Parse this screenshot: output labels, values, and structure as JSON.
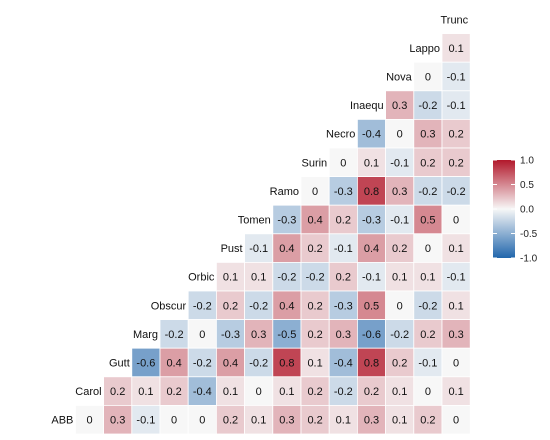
{
  "chart_data": {
    "type": "heatmap",
    "variables": [
      "Trunc",
      "Lappo",
      "Nova",
      "Inaequ",
      "Necro",
      "Surin",
      "Ramo",
      "Tomen",
      "Pust",
      "Orbic",
      "Obscur",
      "Marg",
      "Gutt",
      "Carol",
      "ABB"
    ],
    "rows": [
      {
        "label": "Trunc",
        "values": []
      },
      {
        "label": "Lappo",
        "values": [
          0.1
        ]
      },
      {
        "label": "Nova",
        "values": [
          0,
          -0.1
        ]
      },
      {
        "label": "Inaequ",
        "values": [
          0.3,
          -0.2,
          -0.1
        ]
      },
      {
        "label": "Necro",
        "values": [
          -0.4,
          0,
          0.3,
          0.2
        ]
      },
      {
        "label": "Surin",
        "values": [
          0,
          0.1,
          -0.1,
          0.2,
          0.2
        ]
      },
      {
        "label": "Ramo",
        "values": [
          0,
          -0.3,
          0.8,
          0.3,
          -0.2,
          -0.2
        ]
      },
      {
        "label": "Tomen",
        "values": [
          -0.3,
          0.4,
          0.2,
          -0.3,
          -0.1,
          0.5,
          0
        ]
      },
      {
        "label": "Pust",
        "values": [
          -0.1,
          0.4,
          0.2,
          -0.1,
          0.4,
          0.2,
          0,
          0.1
        ]
      },
      {
        "label": "Orbic",
        "values": [
          0.1,
          0.1,
          -0.2,
          -0.2,
          0.2,
          -0.1,
          0.1,
          0.1,
          -0.1
        ]
      },
      {
        "label": "Obscur",
        "values": [
          -0.2,
          0.2,
          -0.2,
          0.4,
          0.2,
          -0.3,
          0.5,
          0,
          -0.2,
          0.1
        ]
      },
      {
        "label": "Marg",
        "values": [
          -0.2,
          0,
          -0.3,
          0.3,
          -0.5,
          0.2,
          0.3,
          -0.6,
          -0.2,
          0.2,
          0.3
        ]
      },
      {
        "label": "Gutt",
        "values": [
          -0.6,
          0.4,
          -0.2,
          0.4,
          -0.2,
          0.8,
          0.1,
          -0.4,
          0.8,
          0.2,
          -0.1,
          0
        ]
      },
      {
        "label": "Carol",
        "values": [
          0.2,
          0.1,
          0.2,
          -0.4,
          0.1,
          0,
          0.1,
          0.2,
          -0.2,
          0.2,
          0.1,
          0,
          0.1
        ]
      },
      {
        "label": "ABB",
        "values": [
          0,
          0.3,
          -0.1,
          0,
          0,
          0.2,
          0.1,
          0.3,
          0.2,
          0.1,
          0.3,
          0.1,
          0.2,
          0
        ]
      }
    ],
    "color_scale": {
      "low": "#2166ac",
      "mid": "#f7f7f7",
      "high": "#b2182b",
      "domain": [
        -1,
        1
      ]
    },
    "legend": {
      "position": "right",
      "ticks": [
        "1.0",
        "0.5",
        "0.0",
        "-0.5",
        "-1.0"
      ],
      "tick_values": [
        1,
        0.5,
        0,
        -0.5,
        -1
      ]
    }
  }
}
